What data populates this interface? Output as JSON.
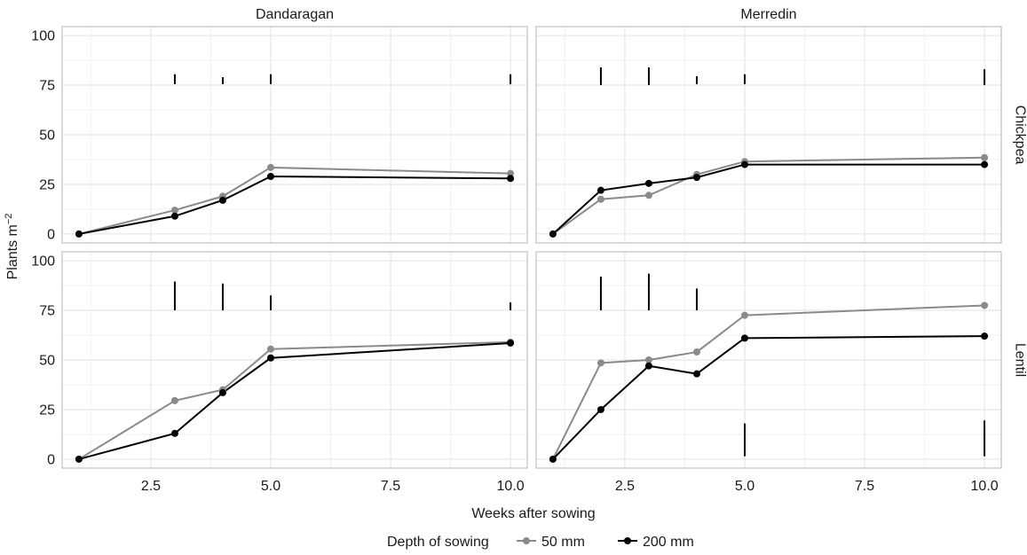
{
  "chart_data": {
    "type": "line",
    "xlabel": "Weeks after sowing",
    "ylabel_main": "Plants m",
    "ylabel_sup": "−2",
    "xlim": [
      0.65,
      10.35
    ],
    "ylim": [
      -4.5,
      104.5
    ],
    "x_ticks": [
      2.5,
      5.0,
      7.5,
      10.0
    ],
    "x_tick_labels": [
      "2.5",
      "5.0",
      "7.5",
      "10.0"
    ],
    "y_ticks": [
      0,
      25,
      50,
      75,
      100
    ],
    "y_tick_labels": [
      "0",
      "25",
      "50",
      "75",
      "100"
    ],
    "grid": true,
    "legend": {
      "title": "Depth of sowing",
      "position": "bottom",
      "entries": [
        {
          "label": "50 mm",
          "color": "#8a8a8a"
        },
        {
          "label": "200 mm",
          "color": "#000000"
        }
      ]
    },
    "columns": [
      "Dandaragan",
      "Merredin"
    ],
    "rows": [
      "Chickpea",
      "Lentil"
    ],
    "panels": [
      {
        "col": "Dandaragan",
        "row": "Chickpea",
        "series": [
          {
            "depth": "50 mm",
            "x": [
              1,
              3,
              4,
              5,
              10
            ],
            "y": [
              0,
              12,
              19,
              33.5,
              30.5
            ]
          },
          {
            "depth": "200 mm",
            "x": [
              1,
              3,
              4,
              5,
              10
            ],
            "y": [
              0,
              9,
              17,
              29,
              28
            ]
          }
        ],
        "error_bars": [
          {
            "x": 3,
            "y_low": 75.5,
            "y_high": 80.5
          },
          {
            "x": 4,
            "y_low": 75.5,
            "y_high": 79
          },
          {
            "x": 5,
            "y_low": 75.5,
            "y_high": 80.5
          },
          {
            "x": 10,
            "y_low": 75.5,
            "y_high": 80.5
          }
        ]
      },
      {
        "col": "Merredin",
        "row": "Chickpea",
        "series": [
          {
            "depth": "50 mm",
            "x": [
              1,
              2,
              3,
              4,
              5,
              10
            ],
            "y": [
              0,
              17.5,
              19.5,
              30,
              36.5,
              38.5
            ]
          },
          {
            "depth": "200 mm",
            "x": [
              1,
              2,
              3,
              4,
              5,
              10
            ],
            "y": [
              0,
              22,
              25.5,
              28.5,
              35,
              35
            ]
          }
        ],
        "error_bars": [
          {
            "x": 2,
            "y_low": 75,
            "y_high": 84
          },
          {
            "x": 3,
            "y_low": 75,
            "y_high": 84
          },
          {
            "x": 4,
            "y_low": 75.5,
            "y_high": 79.5
          },
          {
            "x": 5,
            "y_low": 75.5,
            "y_high": 80.5
          },
          {
            "x": 10,
            "y_low": 75,
            "y_high": 83
          }
        ]
      },
      {
        "col": "Dandaragan",
        "row": "Lentil",
        "series": [
          {
            "depth": "50 mm",
            "x": [
              1,
              3,
              4,
              5,
              10
            ],
            "y": [
              0,
              29.5,
              35,
              55.5,
              59
            ]
          },
          {
            "depth": "200 mm",
            "x": [
              1,
              3,
              4,
              5,
              10
            ],
            "y": [
              0,
              13,
              33.5,
              51,
              58.5
            ]
          }
        ],
        "error_bars": [
          {
            "x": 3,
            "y_low": 75,
            "y_high": 89.5
          },
          {
            "x": 4,
            "y_low": 75,
            "y_high": 88.5
          },
          {
            "x": 5,
            "y_low": 75,
            "y_high": 82.5
          },
          {
            "x": 10,
            "y_low": 75,
            "y_high": 79
          }
        ]
      },
      {
        "col": "Merredin",
        "row": "Lentil",
        "series": [
          {
            "depth": "50 mm",
            "x": [
              1,
              2,
              3,
              4,
              5,
              10
            ],
            "y": [
              0,
              48.5,
              50,
              54,
              72.5,
              77.5
            ]
          },
          {
            "depth": "200 mm",
            "x": [
              1,
              2,
              3,
              4,
              5,
              10
            ],
            "y": [
              0,
              25,
              47,
              43,
              61,
              62
            ]
          }
        ],
        "error_bars": [
          {
            "x": 2,
            "y_low": 75,
            "y_high": 92
          },
          {
            "x": 3,
            "y_low": 75,
            "y_high": 93.5
          },
          {
            "x": 4,
            "y_low": 75,
            "y_high": 86
          },
          {
            "x": 5,
            "y_low": 1.5,
            "y_high": 18
          },
          {
            "x": 10,
            "y_low": 1.5,
            "y_high": 19.5
          }
        ]
      }
    ]
  }
}
